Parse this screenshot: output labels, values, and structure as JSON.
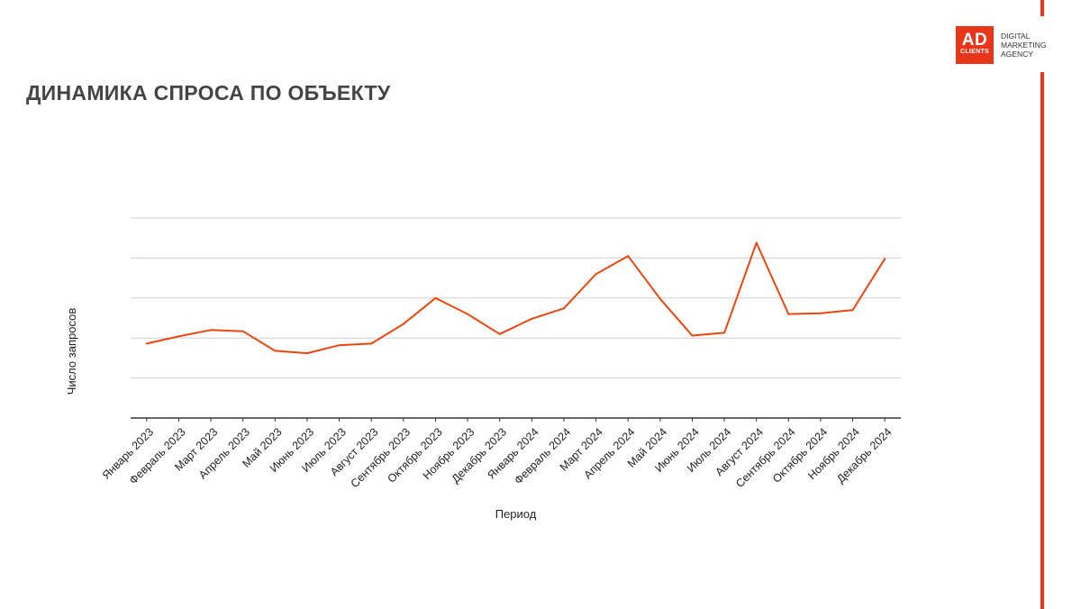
{
  "header": {
    "title": "ДИНАМИКА СПРОСА ПО ОБЪЕКТУ"
  },
  "brand": {
    "logo_main": "AD",
    "logo_sub": "CLIENTS",
    "tagline": [
      "DIGITAL",
      "MARKETING",
      "AGENCY"
    ],
    "accent_color": "#e8361b",
    "line_color": "#e8470f",
    "grid_color": "#cfcfcf"
  },
  "chart_data": {
    "type": "line",
    "xlabel": "Период",
    "ylabel": "Число запросов",
    "grid": true,
    "categories": [
      "Январь 2023",
      "Февраль 2023",
      "Март 2023",
      "Апрель 2023",
      "Май 2023",
      "Июнь 2023",
      "Июль 2023",
      "Август 2023",
      "Сентябрь 2023",
      "Октябрь 2023",
      "Ноябрь 2023",
      "Декабрь 2023",
      "Январь 2024",
      "Февраль 2024",
      "Март 2024",
      "Апрель 2024",
      "Май 2024",
      "Июнь 2024",
      "Июль 2024",
      "Август 2024",
      "Сентябрь 2024",
      "Октябрь 2024",
      "Ноябрь 2024",
      "Декабрь 2024"
    ],
    "ylim": [
      0,
      5
    ],
    "values": [
      1.86,
      2.04,
      2.2,
      2.17,
      1.68,
      1.62,
      1.82,
      1.86,
      2.35,
      3.0,
      2.6,
      2.1,
      2.48,
      2.74,
      3.6,
      4.05,
      2.98,
      2.06,
      2.13,
      4.38,
      2.6,
      2.62,
      2.7,
      3.98
    ]
  }
}
